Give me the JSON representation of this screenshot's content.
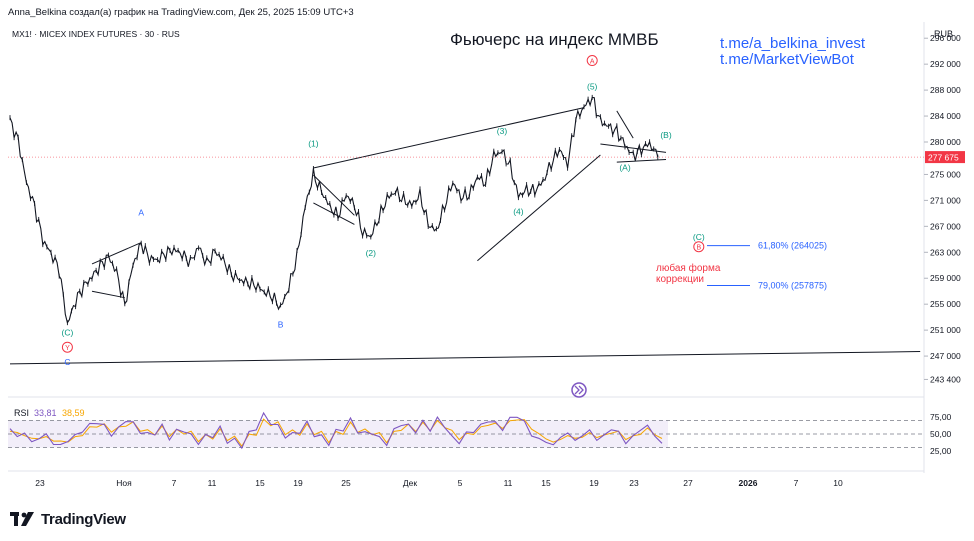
{
  "header": {
    "attribution": "Anna_Belkina создал(а) график на TradingView.com, Дек 25, 2025 15:09 UTC+3",
    "symbol_line": "MX1! · MICEX INDEX FUTURES · 30 · RUS",
    "currency": "RUB"
  },
  "brand": {
    "logo_text": "TradingView"
  },
  "chart_data": {
    "type": "line",
    "title": "Фьючерс на индекс ММВБ",
    "links": [
      "t.me/a_belkina_invest",
      "t.me/MarketViewBot"
    ],
    "x_ticks": [
      "23",
      "Ноя",
      "7",
      "11",
      "15",
      "19",
      "25",
      "Дек",
      "5",
      "11",
      "15",
      "19",
      "23",
      "27",
      "2026",
      "7",
      "10"
    ],
    "y_ticks": [
      296000,
      292000,
      288000,
      284000,
      280000,
      275000,
      271000,
      267000,
      263000,
      259000,
      255000,
      251000,
      247000,
      243400
    ],
    "y_tick_labels": [
      "296 000",
      "292 000",
      "288 000",
      "284 000",
      "280 000",
      "275 000",
      "271 000",
      "267 000",
      "263 000",
      "259 000",
      "255 000",
      "251 000",
      "247 000",
      "243 400"
    ],
    "ylim": [
      241000,
      298500
    ],
    "last_price": 277675,
    "last_price_label": "277 675",
    "price_series": [
      {
        "i": 0,
        "v": 283300
      },
      {
        "i": 1,
        "v": 280200
      },
      {
        "i": 2,
        "v": 273800
      },
      {
        "i": 3,
        "v": 270100
      },
      {
        "i": 4,
        "v": 264900
      },
      {
        "i": 5,
        "v": 262800
      },
      {
        "i": 6,
        "v": 260400
      },
      {
        "i": 7,
        "v": 251900
      },
      {
        "i": 8,
        "v": 255500
      },
      {
        "i": 9,
        "v": 257800
      },
      {
        "i": 10,
        "v": 259200
      },
      {
        "i": 11,
        "v": 260900
      },
      {
        "i": 12,
        "v": 262400
      },
      {
        "i": 13,
        "v": 259900
      },
      {
        "i": 14,
        "v": 254800
      },
      {
        "i": 15,
        "v": 261100
      },
      {
        "i": 16,
        "v": 264300
      },
      {
        "i": 17,
        "v": 262100
      },
      {
        "i": 18,
        "v": 261800
      },
      {
        "i": 19,
        "v": 262900
      },
      {
        "i": 20,
        "v": 263400
      },
      {
        "i": 21,
        "v": 262700
      },
      {
        "i": 22,
        "v": 261400
      },
      {
        "i": 23,
        "v": 263900
      },
      {
        "i": 24,
        "v": 261200
      },
      {
        "i": 25,
        "v": 263200
      },
      {
        "i": 26,
        "v": 261800
      },
      {
        "i": 27,
        "v": 259600
      },
      {
        "i": 28,
        "v": 258800
      },
      {
        "i": 29,
        "v": 258300
      },
      {
        "i": 30,
        "v": 257900
      },
      {
        "i": 31,
        "v": 256900
      },
      {
        "i": 32,
        "v": 256200
      },
      {
        "i": 33,
        "v": 254400
      },
      {
        "i": 34,
        "v": 257600
      },
      {
        "i": 35,
        "v": 262300
      },
      {
        "i": 36,
        "v": 270100
      },
      {
        "i": 37,
        "v": 274900
      },
      {
        "i": 38,
        "v": 272400
      },
      {
        "i": 39,
        "v": 270000
      },
      {
        "i": 40,
        "v": 268600
      },
      {
        "i": 41,
        "v": 271900
      },
      {
        "i": 42,
        "v": 270300
      },
      {
        "i": 43,
        "v": 266100
      },
      {
        "i": 44,
        "v": 265400
      },
      {
        "i": 45,
        "v": 268400
      },
      {
        "i": 46,
        "v": 271300
      },
      {
        "i": 47,
        "v": 272400
      },
      {
        "i": 48,
        "v": 271000
      },
      {
        "i": 49,
        "v": 270300
      },
      {
        "i": 50,
        "v": 271800
      },
      {
        "i": 51,
        "v": 267400
      },
      {
        "i": 52,
        "v": 266200
      },
      {
        "i": 53,
        "v": 270200
      },
      {
        "i": 54,
        "v": 273800
      },
      {
        "i": 55,
        "v": 271500
      },
      {
        "i": 56,
        "v": 271900
      },
      {
        "i": 57,
        "v": 274600
      },
      {
        "i": 58,
        "v": 273700
      },
      {
        "i": 59,
        "v": 277900
      },
      {
        "i": 60,
        "v": 278600
      },
      {
        "i": 61,
        "v": 276200
      },
      {
        "i": 62,
        "v": 271700
      },
      {
        "i": 63,
        "v": 272600
      },
      {
        "i": 64,
        "v": 272500
      },
      {
        "i": 65,
        "v": 273900
      },
      {
        "i": 66,
        "v": 276700
      },
      {
        "i": 67,
        "v": 278900
      },
      {
        "i": 68,
        "v": 276600
      },
      {
        "i": 69,
        "v": 283500
      },
      {
        "i": 70,
        "v": 285400
      },
      {
        "i": 71,
        "v": 286800
      },
      {
        "i": 72,
        "v": 283200
      },
      {
        "i": 73,
        "v": 282400
      },
      {
        "i": 74,
        "v": 281600
      },
      {
        "i": 75,
        "v": 279600
      },
      {
        "i": 76,
        "v": 277800
      },
      {
        "i": 77,
        "v": 278900
      },
      {
        "i": 78,
        "v": 279800
      },
      {
        "i": 79,
        "v": 277675
      }
    ],
    "wave_labels": [
      {
        "text": "(C)",
        "i": 7,
        "v": 250200,
        "color": "#089981"
      },
      {
        "text": "Y",
        "i": 7,
        "v": 247900,
        "color": "#f23645",
        "circled": true
      },
      {
        "text": "C",
        "i": 7,
        "v": 245600,
        "color": "#2962ff"
      },
      {
        "text": "A",
        "i": 16,
        "v": 268700,
        "color": "#2962ff"
      },
      {
        "text": "B",
        "i": 33,
        "v": 251400,
        "color": "#2962ff"
      },
      {
        "text": "(1)",
        "i": 37,
        "v": 279300,
        "color": "#089981"
      },
      {
        "text": "(2)",
        "i": 44,
        "v": 262400,
        "color": "#089981"
      },
      {
        "text": "(3)",
        "i": 60,
        "v": 281200,
        "color": "#089981"
      },
      {
        "text": "(4)",
        "i": 62,
        "v": 268800,
        "color": "#089981"
      },
      {
        "text": "(5)",
        "i": 71,
        "v": 288100,
        "color": "#089981"
      },
      {
        "text": "A",
        "i": 71,
        "v": 292100,
        "color": "#f23645",
        "circled": true
      },
      {
        "text": "(A)",
        "i": 75,
        "v": 275600,
        "color": "#089981"
      },
      {
        "text": "(B)",
        "i": 80,
        "v": 280600,
        "color": "#089981"
      },
      {
        "text": "(C)",
        "i": 84,
        "v": 264900,
        "color": "#089981"
      },
      {
        "text": "B",
        "i": 84,
        "v": 263400,
        "color": "#f23645",
        "circled": true
      }
    ],
    "fib_levels": [
      {
        "label": "61,80% (264025)",
        "value": 264025
      },
      {
        "label": "79,00% (257875)",
        "value": 257875
      }
    ],
    "annotation": "любая форма коррекции",
    "rsi": {
      "label": "RSI",
      "value": "33,81",
      "value2": "38,59",
      "ticks": [
        "75,00",
        "50,00",
        "25,00"
      ],
      "tick_values": [
        75,
        50,
        25
      ],
      "upper_band": 70,
      "lower_band": 30,
      "series": [
        58,
        46,
        52,
        38,
        44,
        49,
        36,
        33,
        41,
        47,
        55,
        63,
        68,
        61,
        50,
        57,
        72,
        64,
        55,
        48,
        53,
        60,
        46,
        52,
        58,
        45,
        40,
        44,
        50,
        56,
        42,
        38,
        35,
        48,
        62,
        75,
        70,
        58,
        50,
        46,
        57,
        63,
        52,
        43,
        39,
        51,
        60,
        68,
        57,
        48,
        55,
        41,
        38,
        53,
        67,
        60,
        56,
        66,
        58,
        71,
        63,
        44,
        39,
        50,
        55,
        62,
        70,
        66,
        57,
        73,
        76,
        68,
        48,
        43,
        38,
        34,
        45,
        52,
        40,
        48,
        55,
        42,
        47,
        58,
        52,
        38,
        45,
        58,
        60,
        50,
        33
      ],
      "series2": [
        54,
        52,
        48,
        43,
        44,
        45,
        41,
        38,
        40,
        44,
        50,
        58,
        63,
        62,
        56,
        57,
        65,
        64,
        58,
        52,
        53,
        57,
        51,
        52,
        55,
        49,
        44,
        44,
        48,
        52,
        46,
        41,
        38,
        44,
        54,
        66,
        68,
        62,
        55,
        50,
        54,
        59,
        55,
        48,
        43,
        48,
        55,
        62,
        58,
        52,
        54,
        47,
        42,
        49,
        60,
        60,
        58,
        63,
        59,
        66,
        63,
        52,
        45,
        48,
        52,
        58,
        65,
        64,
        60,
        68,
        72,
        70,
        58,
        50,
        43,
        38,
        42,
        48,
        43,
        46,
        51,
        46,
        47,
        53,
        52,
        44,
        45,
        52,
        56,
        52,
        40
      ]
    }
  }
}
